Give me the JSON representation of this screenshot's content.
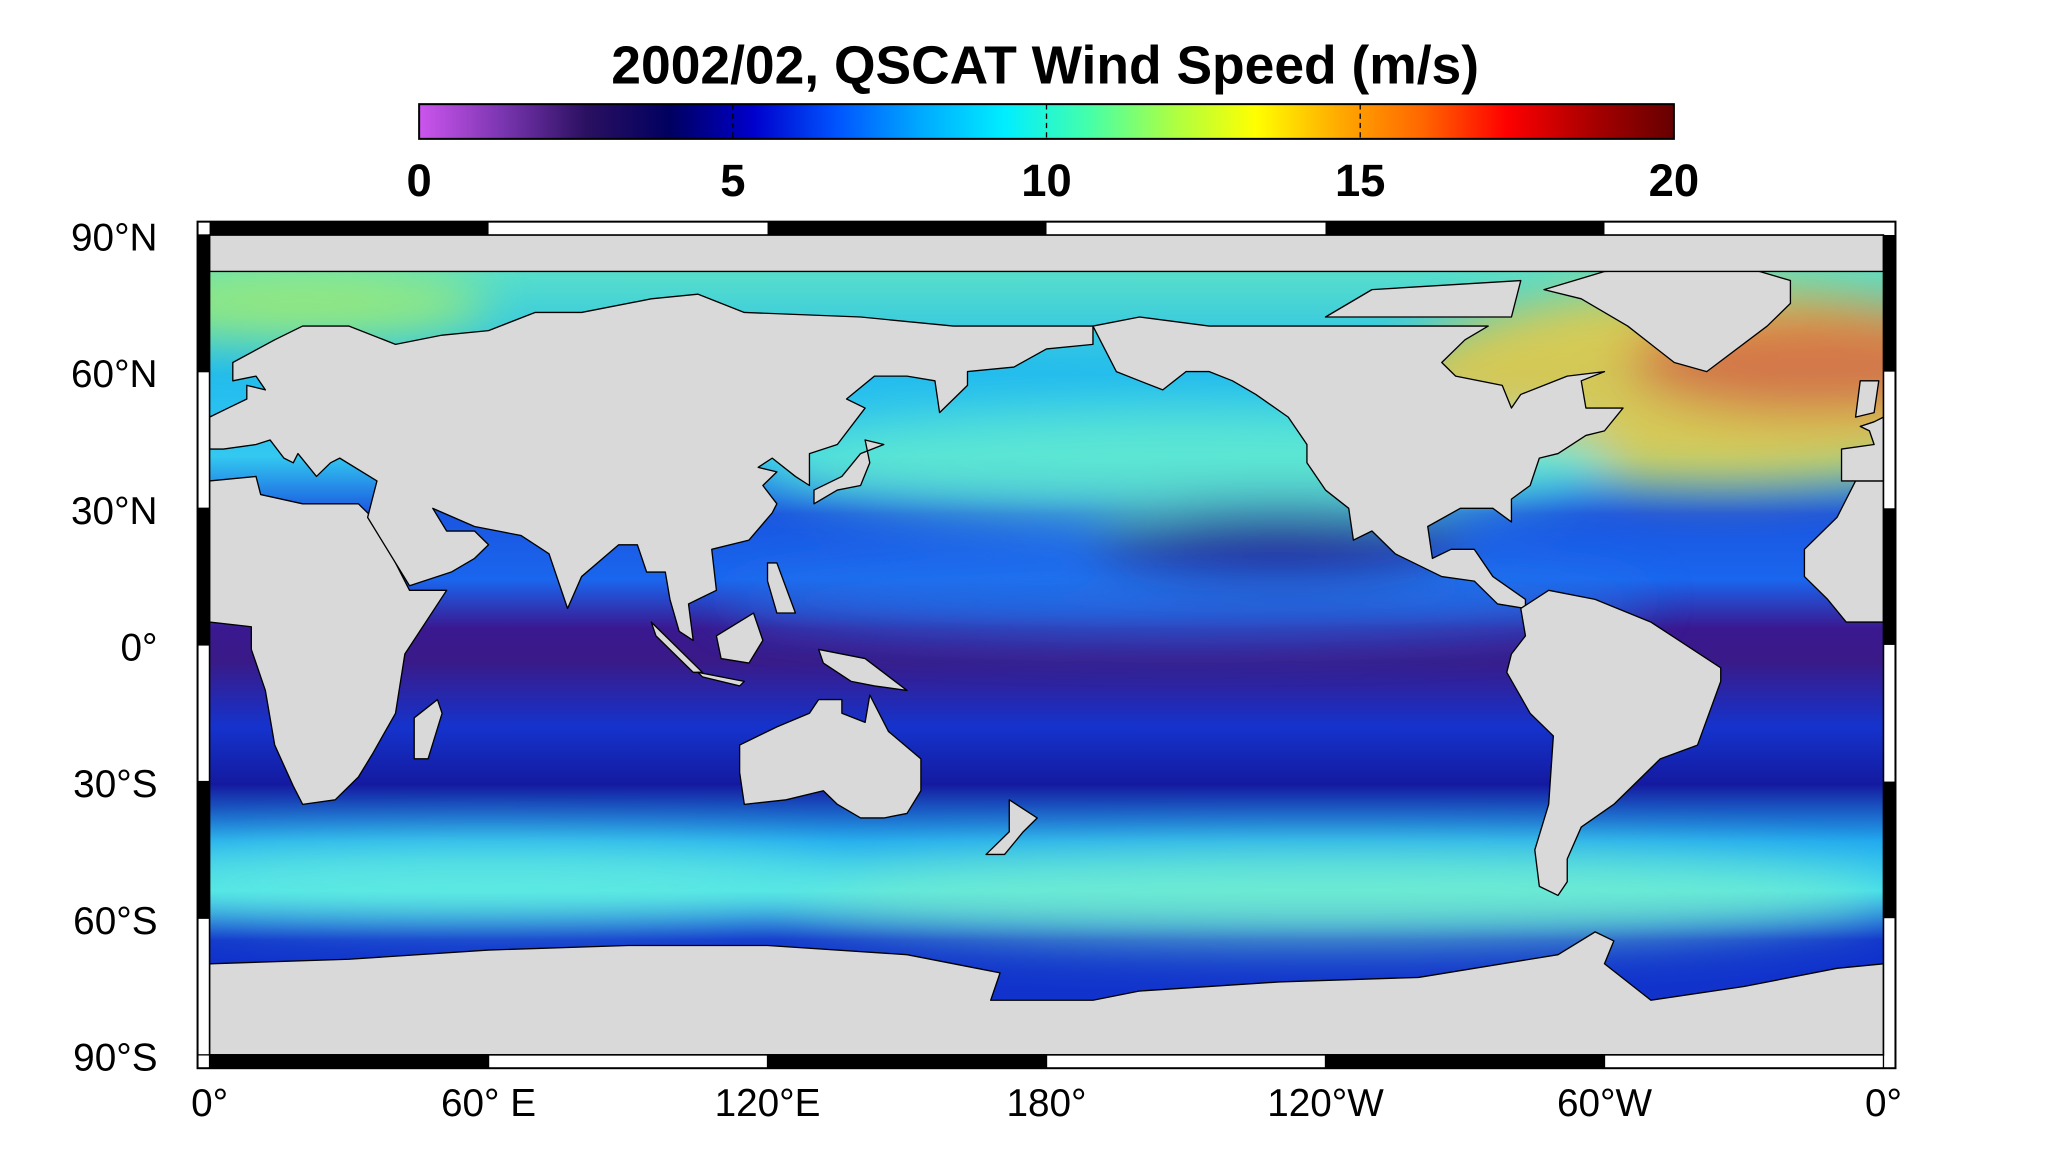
{
  "title": "2002/02,  QSCAT Wind Speed (m/s)",
  "colorbar": {
    "lim": [
      0,
      20
    ],
    "ticks": [
      0,
      5,
      10,
      15,
      20
    ],
    "colors": [
      "#cc55ee",
      "#7a35b0",
      "#2a1060",
      "#000060",
      "#0000cc",
      "#0055ff",
      "#00aaff",
      "#00eeff",
      "#44ffaa",
      "#aaff44",
      "#ffff00",
      "#ffaa00",
      "#ff6600",
      "#ff0000",
      "#aa0000",
      "#660000"
    ]
  },
  "map": {
    "lon_lim": [
      0,
      360
    ],
    "lat_lim": [
      -90,
      90
    ],
    "lat_ticks": [
      {
        "value": 90,
        "label": "90°N"
      },
      {
        "value": 60,
        "label": "60°N"
      },
      {
        "value": 30,
        "label": "30°N"
      },
      {
        "value": 0,
        "label": "0°"
      },
      {
        "value": -30,
        "label": "30°S"
      },
      {
        "value": -60,
        "label": "60°S"
      },
      {
        "value": -90,
        "label": "90°S"
      }
    ],
    "lon_ticks": [
      {
        "value": 0,
        "label": "0°"
      },
      {
        "value": 60,
        "label": "60° E"
      },
      {
        "value": 120,
        "label": "120°E"
      },
      {
        "value": 180,
        "label": "180°"
      },
      {
        "value": 240,
        "label": "120°W"
      },
      {
        "value": 300,
        "label": "60°W"
      },
      {
        "value": 360,
        "label": "0°"
      }
    ]
  }
}
